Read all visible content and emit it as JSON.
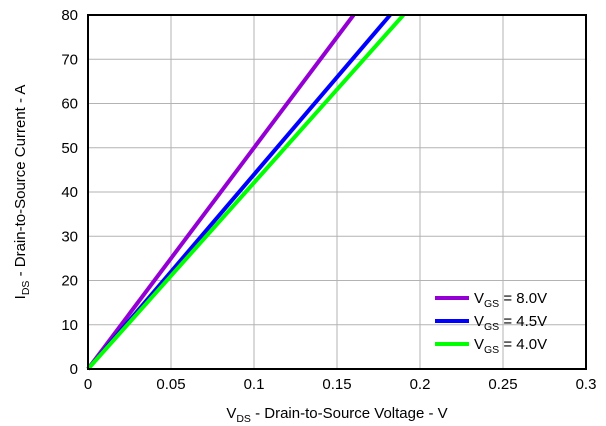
{
  "chart_data": {
    "type": "line",
    "title": "",
    "xlabel": {
      "main": "V",
      "sub": "DS",
      "rest": " - Drain-to-Source Voltage - V"
    },
    "ylabel": {
      "main": "I",
      "sub": "DS",
      "rest": " - Drain-to-Source Current - A"
    },
    "xlim": [
      0,
      0.3
    ],
    "ylim": [
      0,
      80
    ],
    "x_ticks": [
      0,
      0.05,
      0.1,
      0.15,
      0.2,
      0.25,
      0.3
    ],
    "x_tick_labels": [
      "0",
      "0.05",
      "0.1",
      "0.15",
      "0.2",
      "0.25",
      "0.3"
    ],
    "y_ticks": [
      0,
      10,
      20,
      30,
      40,
      50,
      60,
      70,
      80
    ],
    "y_tick_labels": [
      "0",
      "10",
      "20",
      "30",
      "40",
      "50",
      "60",
      "70",
      "80"
    ],
    "grid": true,
    "legend_position": "bottom-right",
    "series": [
      {
        "name": "V",
        "name_sub": "GS",
        "name_rest": " = 8.0V",
        "color": "#9400d3",
        "x": [
          0,
          0.16
        ],
        "y": [
          0,
          80
        ]
      },
      {
        "name": "V",
        "name_sub": "GS",
        "name_rest": " = 4.5V",
        "color": "#0000ff",
        "x": [
          0,
          0.182
        ],
        "y": [
          0,
          80
        ]
      },
      {
        "name": "V",
        "name_sub": "GS",
        "name_rest": " = 4.0V",
        "color": "#00ff00",
        "x": [
          0,
          0.19
        ],
        "y": [
          0,
          80
        ]
      }
    ]
  }
}
